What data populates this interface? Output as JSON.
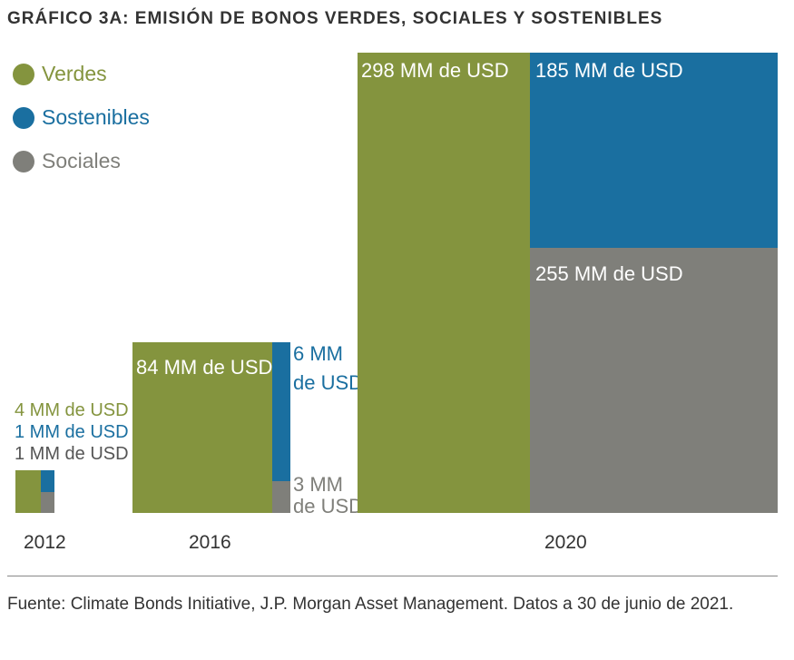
{
  "title": "GRÁFICO 3A: EMISIÓN DE BONOS VERDES, SOCIALES Y SOSTENIBLES",
  "colors": {
    "verdes": "#84943e",
    "sostenibles": "#1a6fa0",
    "sociales": "#7f7f7a"
  },
  "chart_data": {
    "type": "treemap",
    "title": "GRÁFICO 3A: EMISIÓN DE BONOS VERDES, SOCIALES Y SOSTENIBLES",
    "legend": [
      "Verdes",
      "Sostenibles",
      "Sociales"
    ],
    "legend_position": "top-left",
    "categories": [
      "2012",
      "2016",
      "2020"
    ],
    "unit": "MM de USD",
    "series": [
      {
        "name": "Verdes",
        "values": [
          4,
          84,
          298
        ]
      },
      {
        "name": "Sostenibles",
        "values": [
          1,
          6,
          185
        ]
      },
      {
        "name": "Sociales",
        "values": [
          1,
          3,
          255
        ]
      }
    ],
    "labels": {
      "y2012": {
        "verdes": "4 MM de USD",
        "sostenibles": "1 MM de USD",
        "sociales": "1 MM de USD"
      },
      "y2016": {
        "verdes": "84 MM de USD",
        "sostenibles_1": "6 MM",
        "sostenibles_2": "de USD",
        "sociales_1": "3 MM",
        "sociales_2": "de USD"
      },
      "y2020": {
        "verdes": "298 MM de USD",
        "sostenibles": "185 MM de USD",
        "sociales": "255 MM de USD"
      }
    }
  },
  "source": "Fuente: Climate Bonds Initiative, J.P. Morgan Asset Management. Datos a 30 de junio de 2021."
}
